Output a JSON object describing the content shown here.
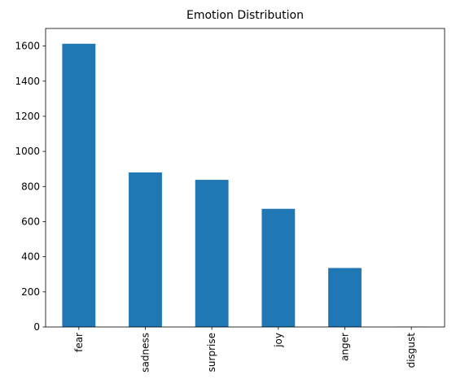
{
  "chart_data": {
    "type": "bar",
    "title": "Emotion Distribution",
    "xlabel": "",
    "ylabel": "",
    "categories": [
      "fear",
      "sadness",
      "surprise",
      "joy",
      "anger",
      "disgust"
    ],
    "values": [
      1613,
      880,
      838,
      673,
      336,
      2
    ],
    "ylim": [
      0,
      1700
    ],
    "yticks": [
      0,
      200,
      400,
      600,
      800,
      1000,
      1200,
      1400,
      1600
    ],
    "grid": false,
    "legend": "none",
    "bar_color": "#1f77b4"
  }
}
